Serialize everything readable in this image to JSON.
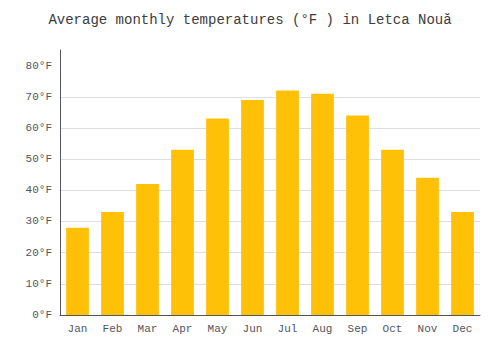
{
  "chart_data": {
    "type": "bar",
    "title": "Average monthly temperatures (°F ) in Letca Nouă",
    "categories": [
      "Jan",
      "Feb",
      "Mar",
      "Apr",
      "May",
      "Jun",
      "Jul",
      "Aug",
      "Sep",
      "Oct",
      "Nov",
      "Dec"
    ],
    "values": [
      28,
      33,
      42,
      53,
      63,
      69,
      72,
      71,
      64,
      53,
      44,
      33
    ],
    "color": "#FFC107",
    "ylim": [
      0,
      85
    ],
    "yticks": [
      {
        "value": 0,
        "label": "0°F"
      },
      {
        "value": 10,
        "label": "10°F"
      },
      {
        "value": 20,
        "label": "20°F"
      },
      {
        "value": 30,
        "label": "30°F"
      },
      {
        "value": 40,
        "label": "40°F"
      },
      {
        "value": 50,
        "label": "50°F"
      },
      {
        "value": 60,
        "label": "60°F"
      },
      {
        "value": 70,
        "label": "70°F"
      },
      {
        "value": 80,
        "label": "80°F"
      }
    ],
    "grid": true
  }
}
